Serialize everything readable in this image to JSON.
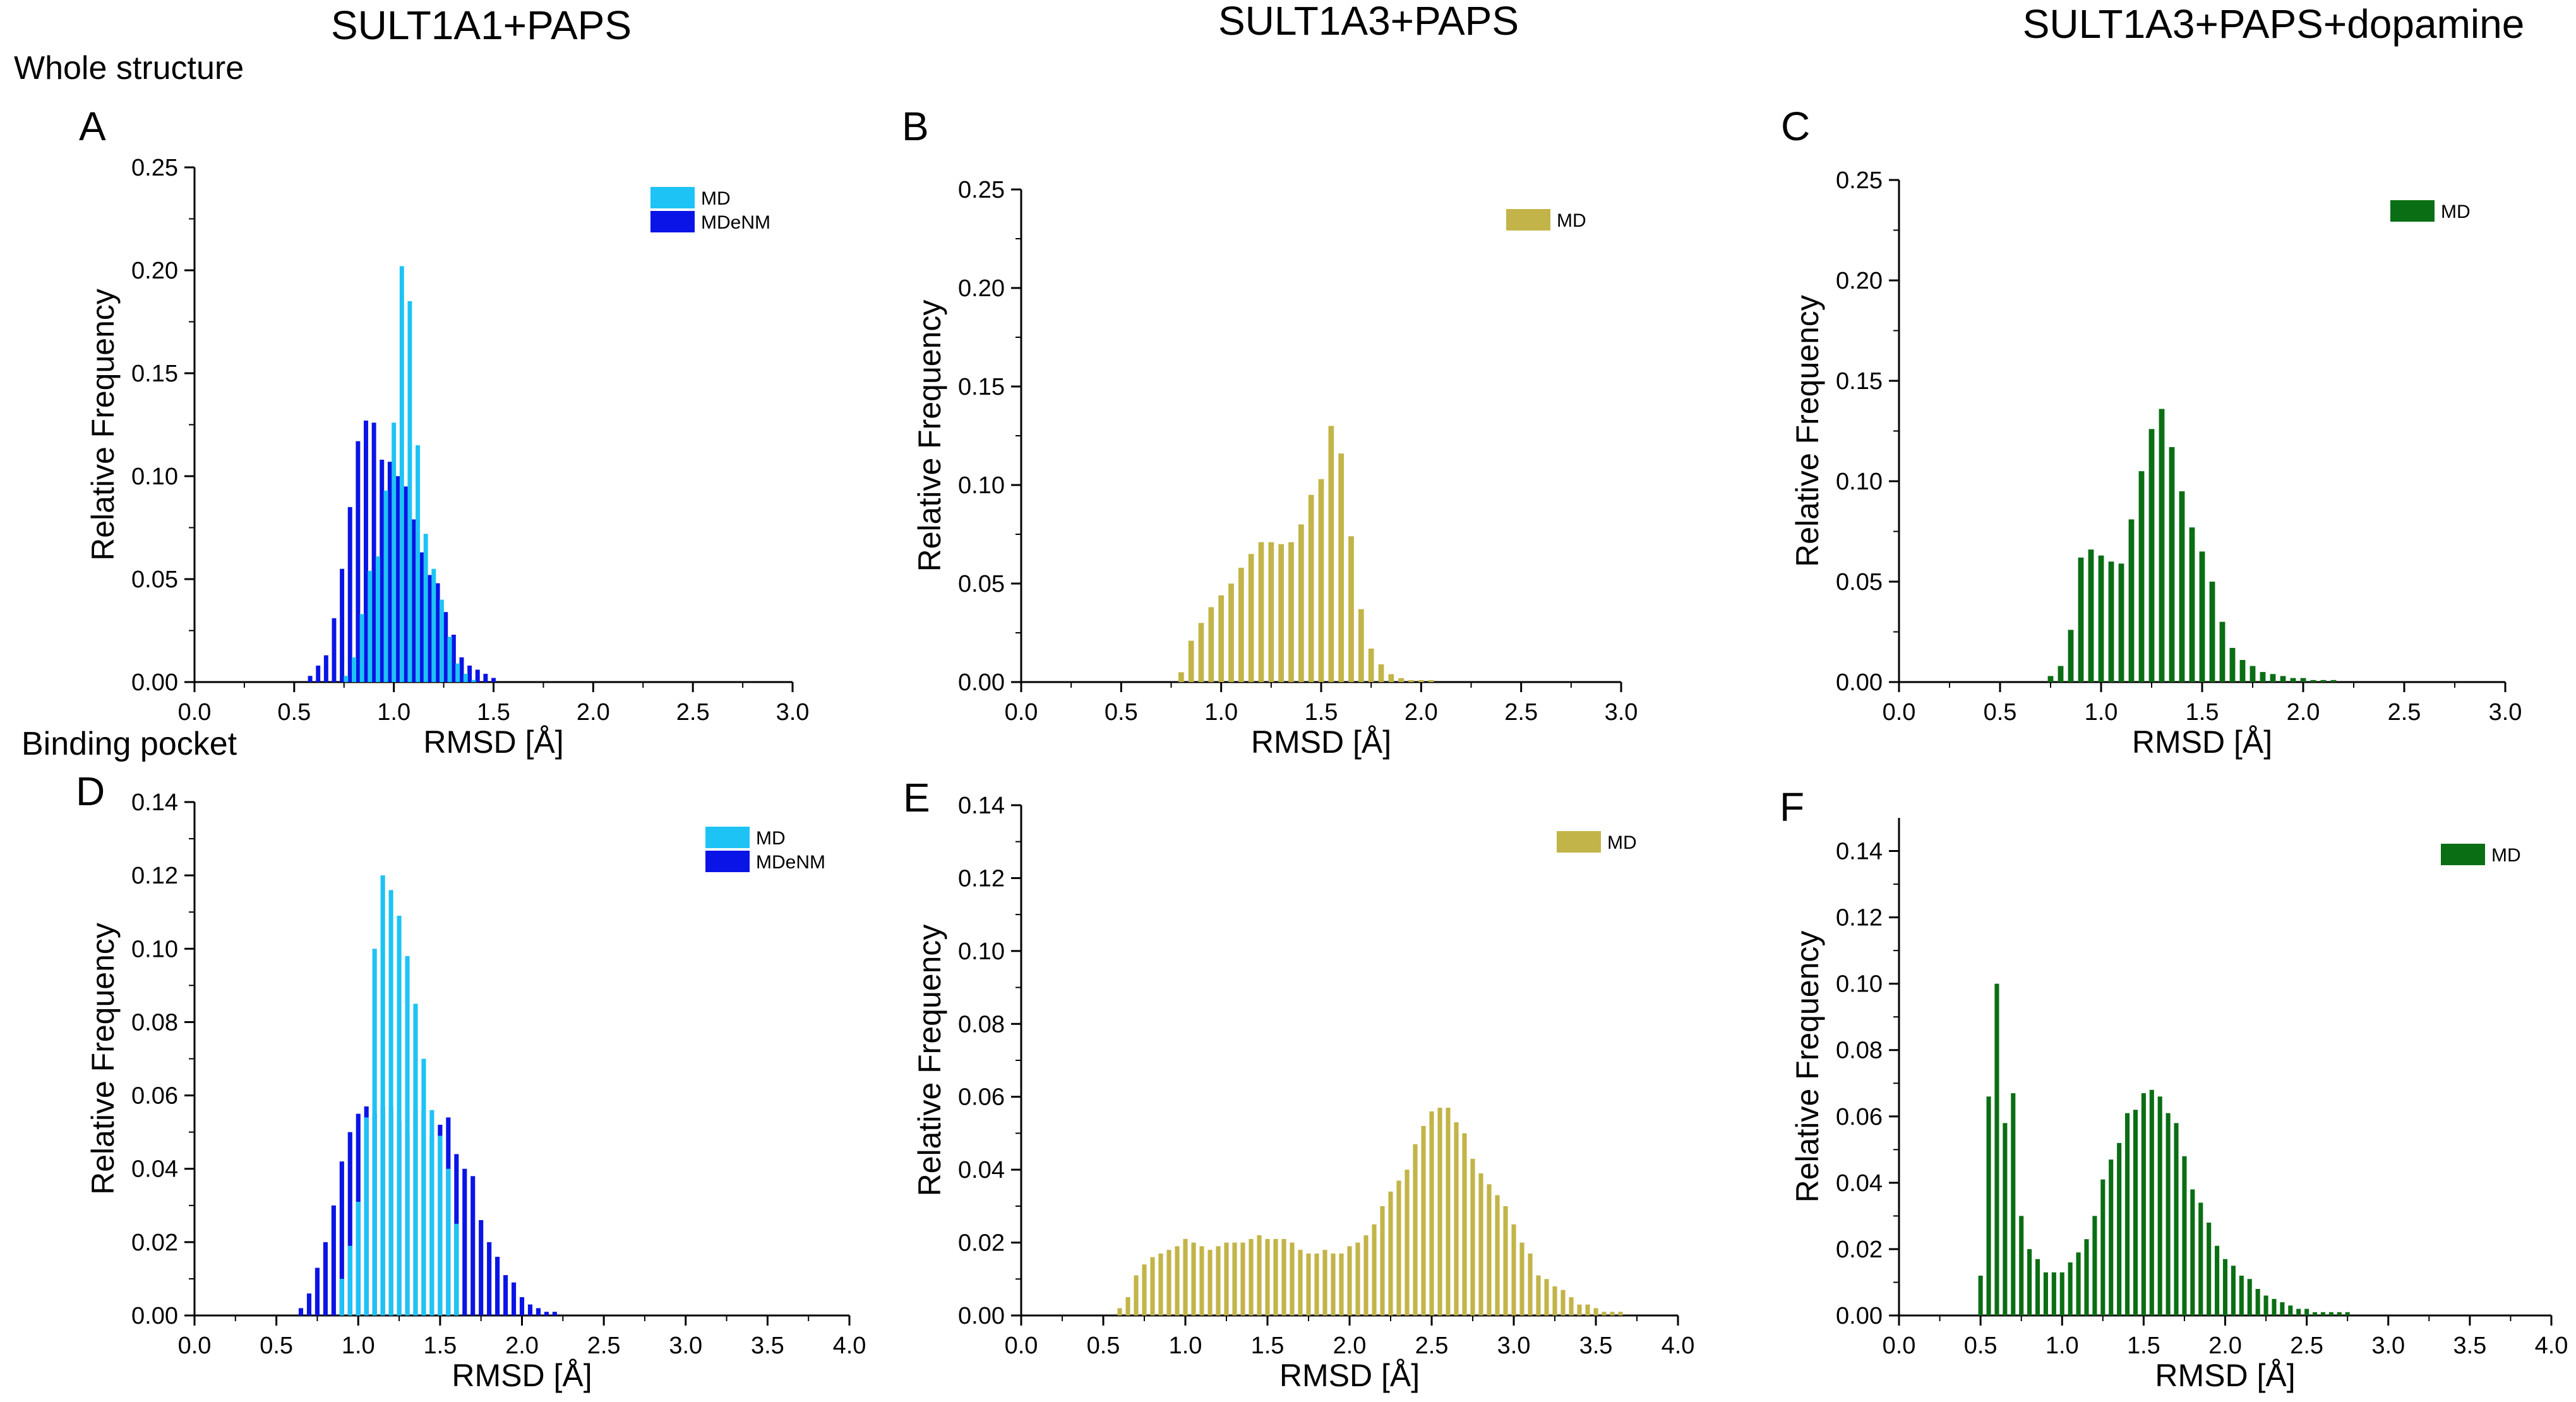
{
  "column_titles": [
    "SULT1A1+PAPS",
    "SULT1A3+PAPS",
    "SULT1A3+PAPS+dopamine"
  ],
  "row_labels": [
    "Whole structure",
    "Binding pocket"
  ],
  "colors": {
    "md_cyan": "#1ec3f5",
    "mdenm_blue": "#0a14e6",
    "olive": "#c2b448",
    "green": "#0a6e14"
  },
  "chart_data": [
    {
      "id": "A",
      "type": "bar",
      "letter": "A",
      "xlabel": "RMSD [Å]",
      "ylabel": "Relative Frequency",
      "xlim": [
        0,
        3.0
      ],
      "ylim": [
        0,
        0.25
      ],
      "xticks": [
        0.0,
        0.5,
        1.0,
        1.5,
        2.0,
        2.5,
        3.0
      ],
      "yticks": [
        0.0,
        0.05,
        0.1,
        0.15,
        0.2,
        0.25
      ],
      "x_decimals": 1,
      "y_decimals": 2,
      "legend": "top-right",
      "series": [
        {
          "name": "MDeNM",
          "color": "#0a14e6",
          "x": [
            0.58,
            0.62,
            0.66,
            0.7,
            0.74,
            0.78,
            0.82,
            0.86,
            0.9,
            0.94,
            0.98,
            1.02,
            1.06,
            1.1,
            1.14,
            1.18,
            1.22,
            1.26,
            1.3,
            1.34,
            1.38,
            1.42,
            1.46,
            1.5
          ],
          "values": [
            0.003,
            0.008,
            0.013,
            0.031,
            0.055,
            0.085,
            0.117,
            0.127,
            0.126,
            0.108,
            0.107,
            0.1,
            0.095,
            0.079,
            0.063,
            0.052,
            0.048,
            0.034,
            0.023,
            0.012,
            0.008,
            0.006,
            0.004,
            0.002
          ]
        },
        {
          "name": "MD",
          "color": "#1ec3f5",
          "x": [
            0.76,
            0.8,
            0.84,
            0.88,
            0.92,
            0.96,
            1.0,
            1.04,
            1.08,
            1.12,
            1.16,
            1.2,
            1.24,
            1.28,
            1.32,
            1.36,
            1.4
          ],
          "values": [
            0.003,
            0.012,
            0.033,
            0.054,
            0.061,
            0.093,
            0.126,
            0.202,
            0.185,
            0.115,
            0.072,
            0.055,
            0.04,
            0.022,
            0.009,
            0.004,
            0.001
          ]
        }
      ]
    },
    {
      "id": "B",
      "type": "bar",
      "letter": "B",
      "xlabel": "RMSD [Å]",
      "ylabel": "Relative Frequency",
      "xlim": [
        0,
        3.0
      ],
      "ylim": [
        0,
        0.25
      ],
      "xticks": [
        0.0,
        0.5,
        1.0,
        1.5,
        2.0,
        2.5,
        3.0
      ],
      "yticks": [
        0.0,
        0.05,
        0.1,
        0.15,
        0.2,
        0.25
      ],
      "x_decimals": 1,
      "y_decimals": 2,
      "legend": "top-right",
      "series": [
        {
          "name": "MD",
          "color": "#c2b448",
          "x": [
            0.8,
            0.85,
            0.9,
            0.95,
            1.0,
            1.05,
            1.1,
            1.15,
            1.2,
            1.25,
            1.3,
            1.35,
            1.4,
            1.45,
            1.5,
            1.55,
            1.6,
            1.65,
            1.7,
            1.75,
            1.8,
            1.85,
            1.9,
            1.95,
            2.0,
            2.05
          ],
          "values": [
            0.005,
            0.021,
            0.03,
            0.038,
            0.044,
            0.05,
            0.058,
            0.065,
            0.071,
            0.071,
            0.07,
            0.071,
            0.08,
            0.095,
            0.103,
            0.13,
            0.116,
            0.074,
            0.037,
            0.017,
            0.009,
            0.004,
            0.002,
            0.001,
            0.001,
            0.001
          ]
        }
      ]
    },
    {
      "id": "C",
      "type": "bar",
      "letter": "C",
      "xlabel": "RMSD [Å]",
      "ylabel": "Relative Frequency",
      "xlim": [
        0,
        3.0
      ],
      "ylim": [
        0,
        0.25
      ],
      "xticks": [
        0.0,
        0.5,
        1.0,
        1.5,
        2.0,
        2.5,
        3.0
      ],
      "yticks": [
        0.0,
        0.05,
        0.1,
        0.15,
        0.2,
        0.25
      ],
      "x_decimals": 1,
      "y_decimals": 2,
      "legend": "top-right",
      "series": [
        {
          "name": "MD",
          "color": "#0a6e14",
          "x": [
            0.75,
            0.8,
            0.85,
            0.9,
            0.95,
            1.0,
            1.05,
            1.1,
            1.15,
            1.2,
            1.25,
            1.3,
            1.35,
            1.4,
            1.45,
            1.5,
            1.55,
            1.6,
            1.65,
            1.7,
            1.75,
            1.8,
            1.85,
            1.9,
            1.95,
            2.0,
            2.05,
            2.1,
            2.15
          ],
          "values": [
            0.003,
            0.008,
            0.026,
            0.062,
            0.066,
            0.063,
            0.06,
            0.059,
            0.081,
            0.105,
            0.126,
            0.136,
            0.117,
            0.095,
            0.077,
            0.065,
            0.05,
            0.03,
            0.017,
            0.011,
            0.008,
            0.005,
            0.004,
            0.003,
            0.002,
            0.002,
            0.001,
            0.001,
            0.001
          ]
        }
      ]
    },
    {
      "id": "D",
      "type": "bar",
      "letter": "D",
      "xlabel": "RMSD [Å]",
      "ylabel": "Relative Frequency",
      "xlim": [
        0,
        4.0
      ],
      "ylim": [
        0,
        0.14
      ],
      "xticks": [
        0.0,
        0.5,
        1.0,
        1.5,
        2.0,
        2.5,
        3.0,
        3.5,
        4.0
      ],
      "yticks": [
        0.0,
        0.02,
        0.04,
        0.06,
        0.08,
        0.1,
        0.12,
        0.14
      ],
      "x_decimals": 1,
      "y_decimals": 2,
      "legend": "top-right",
      "series": [
        {
          "name": "MDeNM",
          "color": "#0a14e6",
          "x": [
            0.65,
            0.7,
            0.75,
            0.8,
            0.85,
            0.9,
            0.95,
            1.0,
            1.05,
            1.1,
            1.15,
            1.2,
            1.25,
            1.3,
            1.35,
            1.4,
            1.45,
            1.5,
            1.55,
            1.6,
            1.65,
            1.7,
            1.75,
            1.8,
            1.85,
            1.9,
            1.95,
            2.0,
            2.05,
            2.1,
            2.15,
            2.2
          ],
          "values": [
            0.002,
            0.006,
            0.013,
            0.02,
            0.03,
            0.042,
            0.05,
            0.055,
            0.057,
            0.055,
            0.057,
            0.057,
            0.053,
            0.05,
            0.056,
            0.056,
            0.049,
            0.052,
            0.054,
            0.044,
            0.04,
            0.038,
            0.026,
            0.02,
            0.016,
            0.011,
            0.009,
            0.005,
            0.003,
            0.002,
            0.001,
            0.001
          ]
        },
        {
          "name": "MD",
          "color": "#1ec3f5",
          "x": [
            0.9,
            0.95,
            1.0,
            1.05,
            1.1,
            1.15,
            1.2,
            1.25,
            1.3,
            1.35,
            1.4,
            1.45,
            1.5,
            1.55,
            1.6
          ],
          "values": [
            0.01,
            0.019,
            0.031,
            0.054,
            0.1,
            0.12,
            0.116,
            0.109,
            0.098,
            0.085,
            0.07,
            0.056,
            0.049,
            0.04,
            0.025
          ]
        }
      ]
    },
    {
      "id": "E",
      "type": "bar",
      "letter": "E",
      "xlabel": "RMSD [Å]",
      "ylabel": "Relative Frequency",
      "xlim": [
        0,
        4.0
      ],
      "ylim": [
        0,
        0.14
      ],
      "xticks": [
        0.0,
        0.5,
        1.0,
        1.5,
        2.0,
        2.5,
        3.0,
        3.5,
        4.0
      ],
      "yticks": [
        0.0,
        0.02,
        0.04,
        0.06,
        0.08,
        0.1,
        0.12,
        0.14
      ],
      "x_decimals": 1,
      "y_decimals": 2,
      "legend": "top-right",
      "series": [
        {
          "name": "MD",
          "color": "#c2b448",
          "x": [
            0.6,
            0.65,
            0.7,
            0.75,
            0.8,
            0.85,
            0.9,
            0.95,
            1.0,
            1.05,
            1.1,
            1.15,
            1.2,
            1.25,
            1.3,
            1.35,
            1.4,
            1.45,
            1.5,
            1.55,
            1.6,
            1.65,
            1.7,
            1.75,
            1.8,
            1.85,
            1.9,
            1.95,
            2.0,
            2.05,
            2.1,
            2.15,
            2.2,
            2.25,
            2.3,
            2.35,
            2.4,
            2.45,
            2.5,
            2.55,
            2.6,
            2.65,
            2.7,
            2.75,
            2.8,
            2.85,
            2.9,
            2.95,
            3.0,
            3.05,
            3.1,
            3.15,
            3.2,
            3.25,
            3.3,
            3.35,
            3.4,
            3.45,
            3.5,
            3.55,
            3.6,
            3.65
          ],
          "values": [
            0.002,
            0.005,
            0.011,
            0.014,
            0.016,
            0.017,
            0.018,
            0.019,
            0.021,
            0.02,
            0.019,
            0.018,
            0.019,
            0.02,
            0.02,
            0.02,
            0.021,
            0.022,
            0.021,
            0.021,
            0.021,
            0.02,
            0.018,
            0.017,
            0.017,
            0.018,
            0.017,
            0.017,
            0.019,
            0.02,
            0.022,
            0.025,
            0.03,
            0.034,
            0.037,
            0.04,
            0.047,
            0.052,
            0.056,
            0.057,
            0.057,
            0.053,
            0.05,
            0.043,
            0.039,
            0.036,
            0.033,
            0.03,
            0.025,
            0.02,
            0.017,
            0.011,
            0.01,
            0.008,
            0.007,
            0.005,
            0.003,
            0.003,
            0.002,
            0.001,
            0.001,
            0.001
          ]
        }
      ]
    },
    {
      "id": "F",
      "type": "bar",
      "letter": "F",
      "xlabel": "RMSD [Å]",
      "ylabel": "Relative Frequency",
      "xlim": [
        0,
        4.0
      ],
      "ylim": [
        0,
        0.15
      ],
      "xticks": [
        0.0,
        0.5,
        1.0,
        1.5,
        2.0,
        2.5,
        3.0,
        3.5,
        4.0
      ],
      "yticks": [
        0.0,
        0.02,
        0.04,
        0.06,
        0.08,
        0.1,
        0.12,
        0.14
      ],
      "x_decimals": 1,
      "y_decimals": 2,
      "legend": "top-right",
      "series": [
        {
          "name": "MD",
          "color": "#0a6e14",
          "x": [
            0.5,
            0.55,
            0.6,
            0.65,
            0.7,
            0.75,
            0.8,
            0.85,
            0.9,
            0.95,
            1.0,
            1.05,
            1.1,
            1.15,
            1.2,
            1.25,
            1.3,
            1.35,
            1.4,
            1.45,
            1.5,
            1.55,
            1.6,
            1.65,
            1.7,
            1.75,
            1.8,
            1.85,
            1.9,
            1.95,
            2.0,
            2.05,
            2.1,
            2.15,
            2.2,
            2.25,
            2.3,
            2.35,
            2.4,
            2.45,
            2.5,
            2.55,
            2.6,
            2.65,
            2.7,
            2.75
          ],
          "values": [
            0.012,
            0.066,
            0.1,
            0.058,
            0.067,
            0.03,
            0.02,
            0.017,
            0.013,
            0.013,
            0.013,
            0.016,
            0.019,
            0.023,
            0.03,
            0.041,
            0.047,
            0.052,
            0.061,
            0.062,
            0.067,
            0.068,
            0.066,
            0.061,
            0.058,
            0.048,
            0.038,
            0.034,
            0.028,
            0.021,
            0.017,
            0.015,
            0.012,
            0.011,
            0.008,
            0.006,
            0.005,
            0.004,
            0.003,
            0.002,
            0.002,
            0.001,
            0.001,
            0.001,
            0.001,
            0.001
          ]
        }
      ]
    }
  ]
}
